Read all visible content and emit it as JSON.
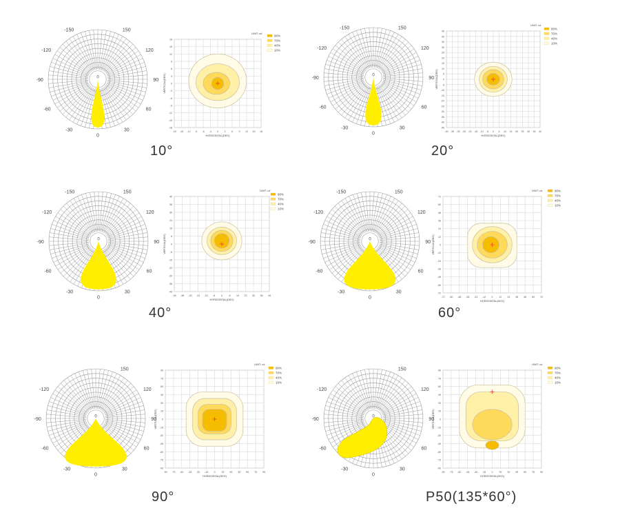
{
  "colors": {
    "beam": "#ffee00",
    "grid": "#9a9a9a",
    "iso": [
      "#f6bd00",
      "#ffd95a",
      "#fff0a8",
      "#fffbe6"
    ],
    "iso_line": "#c8bda0",
    "center_mark": "#e8412a"
  },
  "panels": [
    {
      "id": "p10",
      "caption": "10°",
      "polar": {
        "type": "polar",
        "angle_labels": {
          "top_left": "-150",
          "top_right": "150",
          "upper_left": "-120",
          "upper_right": "120",
          "left": "-90",
          "right": "90",
          "lower_left": "-60",
          "lower_right": "60",
          "bottom_left": "-30",
          "bottom_right": "30",
          "bottom": "0",
          "center": "0"
        },
        "beam_angle": 10
      },
      "iso": {
        "type": "heatmap",
        "unit_label": "UNIT: cd",
        "levels": [
          "90%",
          "70%",
          "40%",
          "10%"
        ],
        "xlabel": "HORIZONTAL(DEG)",
        "ylabel": "VERTICAL(DEG)",
        "x_ticks": [
          "-18",
          "-15",
          "-12",
          "-9",
          "-6",
          "-3",
          "0",
          "3",
          "6",
          "9",
          "12",
          "15",
          "18"
        ],
        "y_ticks": [
          "18",
          "15",
          "12",
          "9",
          "6",
          "3",
          "0",
          "-3",
          "-6",
          "-9",
          "-12",
          "-15",
          "-18"
        ],
        "range": [
          -18,
          18
        ],
        "contours": [
          {
            "level": "10%",
            "rx": 12,
            "ry": 11,
            "cx": 0,
            "cy": 1
          },
          {
            "level": "40%",
            "rx": 9,
            "ry": 7.5,
            "cx": 0,
            "cy": 0.5
          },
          {
            "level": "70%",
            "rx": 5.5,
            "ry": 4.5,
            "cx": -0.5,
            "cy": 0
          },
          {
            "level": "90%",
            "rx": 2.5,
            "ry": 2.5,
            "cx": 0,
            "cy": 0
          }
        ]
      }
    },
    {
      "id": "p20",
      "caption": "20°",
      "polar": {
        "type": "polar",
        "angle_labels": {
          "top_left": "-150",
          "top_right": "150",
          "upper_left": "-120",
          "upper_right": "120",
          "left": "-90",
          "right": "90",
          "lower_left": "-60",
          "lower_right": "60",
          "bottom_left": "-30",
          "bottom_right": "30",
          "bottom": "0",
          "center": "0"
        },
        "beam_angle": 14
      },
      "iso": {
        "type": "heatmap",
        "unit_label": "UNIT: cd",
        "levels": [
          "90%",
          "70%",
          "40%",
          "10%"
        ],
        "xlabel": "HORIZONTAL(DEG)",
        "ylabel": "VERTICAL(DEG)",
        "x_ticks": [
          "-40",
          "-35",
          "-30",
          "-25",
          "-20",
          "-15",
          "-10",
          "-5",
          "0",
          "5",
          "10",
          "15",
          "20",
          "25",
          "30",
          "35",
          "40"
        ],
        "y_ticks": [
          "45",
          "40",
          "35",
          "30",
          "25",
          "20",
          "15",
          "10",
          "5",
          "0",
          "-5",
          "-10",
          "-15",
          "-20",
          "-25",
          "-30",
          "-35",
          "-40",
          "-45"
        ],
        "range": [
          -40,
          40
        ],
        "y_range": [
          -45,
          45
        ],
        "contours": [
          {
            "level": "10%",
            "rx": 16,
            "ry": 16,
            "cx": 0,
            "cy": 0
          },
          {
            "level": "40%",
            "rx": 12,
            "ry": 12,
            "cx": 0,
            "cy": 0
          },
          {
            "level": "70%",
            "rx": 9,
            "ry": 9,
            "cx": 0,
            "cy": 0
          },
          {
            "level": "90%",
            "rx": 5.5,
            "ry": 5.5,
            "cx": 0,
            "cy": 0
          }
        ]
      }
    },
    {
      "id": "p40",
      "caption": "40°",
      "polar": {
        "type": "polar",
        "angle_labels": {
          "top_left": "-150",
          "top_right": "150",
          "upper_left": "-120",
          "upper_right": "120",
          "left": "-90",
          "right": "90",
          "lower_left": "-60",
          "lower_right": "60",
          "bottom_left": "-30",
          "bottom_right": "30",
          "bottom": "0",
          "center": "0"
        },
        "beam_angle": 38
      },
      "iso": {
        "type": "heatmap",
        "unit_label": "UNIT: cd",
        "levels": [
          "90%",
          "70%",
          "40%",
          "10%"
        ],
        "xlabel": "HORIZONTAL(DEG)",
        "ylabel": "VERTICAL(DEG)",
        "x_ticks": [
          "-45",
          "-38",
          "-30",
          "-23",
          "-15",
          "-8",
          "0",
          "8",
          "15",
          "23",
          "30",
          "38",
          "45"
        ],
        "y_ticks": [
          "45",
          "38",
          "30",
          "23",
          "15",
          "8",
          "0",
          "-8",
          "-15",
          "-23",
          "-30",
          "-38",
          "-45"
        ],
        "range": [
          -45,
          45
        ],
        "contours": [
          {
            "level": "10%",
            "rx": 19,
            "ry": 18,
            "cx": 0,
            "cy": 3
          },
          {
            "level": "40%",
            "rx": 14,
            "ry": 13,
            "cx": 0,
            "cy": 3
          },
          {
            "level": "70%",
            "rx": 10.5,
            "ry": 10,
            "cx": 0,
            "cy": 3
          },
          {
            "level": "90%",
            "rx": 7,
            "ry": 7,
            "cx": 0,
            "cy": 3
          }
        ]
      }
    },
    {
      "id": "p60",
      "caption": "60°",
      "polar": {
        "type": "polar",
        "angle_labels": {
          "top_left": "-150",
          "top_right": "150",
          "upper_left": "-120",
          "upper_right": "120",
          "left": "-90",
          "right": "90",
          "lower_left": "-60",
          "lower_right": "60",
          "bottom_left": "-30",
          "bottom_right": "30",
          "bottom": "0",
          "center": "0"
        },
        "beam_angle": 56
      },
      "iso": {
        "type": "heatmap",
        "unit_label": "UNIT: cd",
        "levels": [
          "90%",
          "70%",
          "40%",
          "10%"
        ],
        "xlabel": "HORIZONTAL(DEG)",
        "ylabel": "VERTICAL(DEG)",
        "x_ticks": [
          "-72",
          "-60",
          "-48",
          "-36",
          "-24",
          "-12",
          "0",
          "12",
          "24",
          "36",
          "48",
          "60",
          "72"
        ],
        "y_ticks": [
          "72",
          "60",
          "48",
          "36",
          "24",
          "12",
          "0",
          "-12",
          "-24",
          "-36",
          "-48",
          "-60",
          "-72"
        ],
        "range": [
          -72,
          72
        ],
        "contours": [
          {
            "level": "10%",
            "rx": 36,
            "ry": 33,
            "cx": 0,
            "cy": -1,
            "square": true
          },
          {
            "level": "40%",
            "rx": 29,
            "ry": 27,
            "cx": 0,
            "cy": 0
          },
          {
            "level": "70%",
            "rx": 22,
            "ry": 20,
            "cx": 0,
            "cy": 0
          },
          {
            "level": "90%",
            "rx": 12,
            "ry": 12,
            "cx": -2,
            "cy": 0
          }
        ]
      }
    },
    {
      "id": "p90",
      "caption": "90°",
      "polar": {
        "type": "polar",
        "angle_labels": {
          "top_left": "",
          "top_right": "150",
          "upper_left": "-120",
          "upper_right": "120",
          "left": "-90",
          "right": "90",
          "lower_left": "-60",
          "lower_right": "60",
          "bottom_left": "-30",
          "bottom_right": "30",
          "bottom": "0",
          "center": "0"
        },
        "beam_angle": 90
      },
      "iso": {
        "type": "heatmap",
        "unit_label": "UNIT: cd",
        "levels": [
          "90%",
          "70%",
          "40%",
          "10%"
        ],
        "xlabel": "HORIZONTAL(DEG)",
        "ylabel": "VERTICAL(DEG)",
        "x_ticks": [
          "-90",
          "-75",
          "-60",
          "-45",
          "-30",
          "-15",
          "0",
          "15",
          "30",
          "45",
          "60",
          "75",
          "90"
        ],
        "y_ticks": [
          "90",
          "75",
          "60",
          "45",
          "30",
          "15",
          "0",
          "-15",
          "-30",
          "-45",
          "-60",
          "-75",
          "-90"
        ],
        "range": [
          -90,
          90
        ],
        "contours": [
          {
            "level": "10%",
            "rx": 52,
            "ry": 50,
            "cx": 0,
            "cy": 0,
            "square": true
          },
          {
            "level": "40%",
            "rx": 40,
            "ry": 38,
            "cx": 0,
            "cy": 0,
            "square": true
          },
          {
            "level": "70%",
            "rx": 30,
            "ry": 27,
            "cx": 0,
            "cy": 0,
            "square": true
          },
          {
            "level": "90%",
            "rx": 22,
            "ry": 20,
            "cx": 0,
            "cy": -2,
            "square": true
          }
        ]
      }
    },
    {
      "id": "p50",
      "caption": "P50(135*60°)",
      "polar": {
        "type": "polar",
        "angle_labels": {
          "top_left": "",
          "top_right": "150",
          "upper_left": "-120",
          "upper_right": "120",
          "left": "-90",
          "right": "90",
          "lower_left": "-60",
          "lower_right": "60",
          "bottom_left": "-30",
          "bottom_right": "30",
          "bottom": "0",
          "center": "0"
        },
        "beam_angle": 60,
        "asymmetric": true
      },
      "iso": {
        "type": "heatmap",
        "unit_label": "UNIT: cd",
        "levels": [
          "90%",
          "70%",
          "40%",
          "10%"
        ],
        "xlabel": "HORIZONTAL(DEG)",
        "ylabel": "VERTICAL(DEG)",
        "x_ticks": [
          "-90",
          "-75",
          "-60",
          "-45",
          "-30",
          "-15",
          "0",
          "15",
          "30",
          "45",
          "60",
          "75",
          "90"
        ],
        "y_ticks": [
          "90",
          "75",
          "60",
          "45",
          "30",
          "15",
          "0",
          "-15",
          "-30",
          "-45",
          "-60",
          "-75",
          "-90"
        ],
        "range": [
          -90,
          90
        ],
        "center_mark": [
          0,
          50
        ],
        "contours": [
          {
            "level": "10%",
            "rx": 60,
            "ry": 58,
            "cx": 0,
            "cy": 5,
            "square": true
          },
          {
            "level": "40%",
            "rx": 48,
            "ry": 45,
            "cx": 0,
            "cy": 5,
            "square": true
          },
          {
            "level": "70%",
            "rx": 36,
            "ry": 28,
            "cx": 0,
            "cy": -10
          },
          {
            "level": "90%",
            "rx": 12,
            "ry": 8,
            "cx": 0,
            "cy": -48
          }
        ]
      }
    }
  ]
}
